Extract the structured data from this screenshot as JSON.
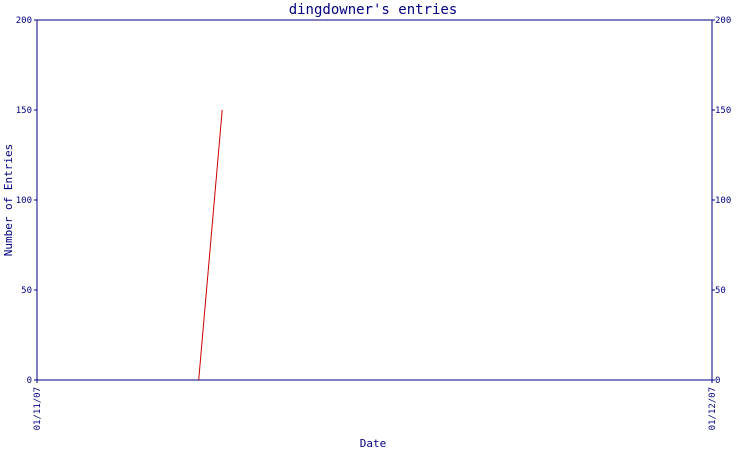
{
  "chart_data": {
    "type": "line",
    "title": "dingdowner's entries",
    "xlabel": "Date",
    "ylabel": "Number of Entries",
    "x_ticks": [
      "01/11/07",
      "01/12/07"
    ],
    "xlim": [
      "2007-01-11",
      "2007-01-12"
    ],
    "ylim": [
      0,
      200
    ],
    "y_ticks": [
      0,
      50,
      100,
      150,
      200
    ],
    "right_axis_ticks": [
      0,
      50,
      100,
      150,
      200
    ],
    "grid": false,
    "series": [
      {
        "color": "#cc0000",
        "points": [
          {
            "x": "2007-01-11T05:45",
            "y": 0
          },
          {
            "x": "2007-01-11T06:35",
            "y": 150
          }
        ]
      }
    ],
    "colors": {
      "axis": "#000080",
      "text": "#000080",
      "line": "#cc0000",
      "background": "#ffffff"
    }
  }
}
